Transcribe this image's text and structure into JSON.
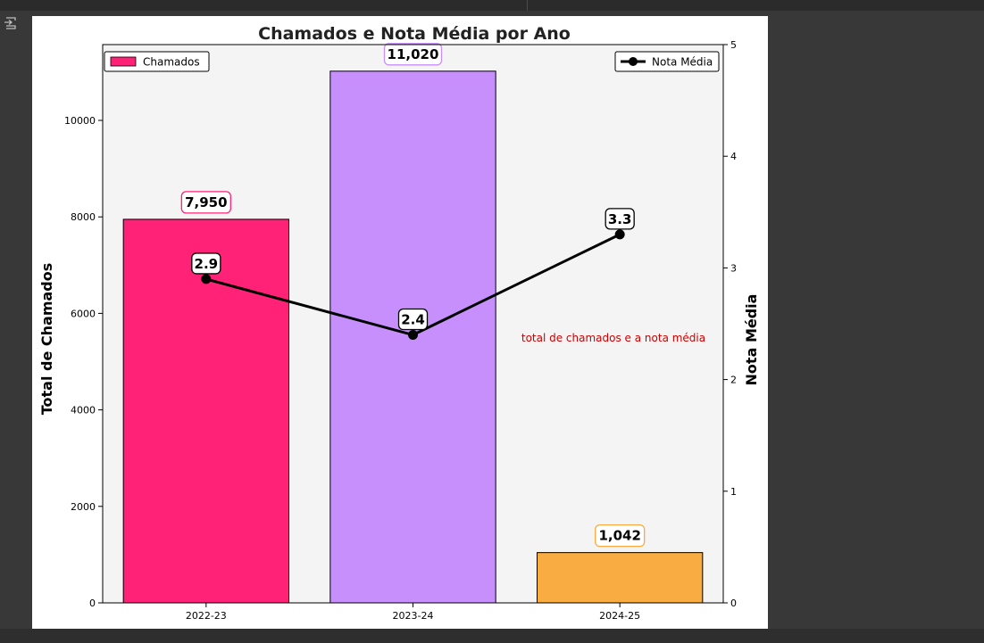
{
  "chart_data": {
    "type": "bar",
    "title": "Chamados e Nota Média por Ano",
    "categories": [
      "2022-23",
      "2023-24",
      "2024-25"
    ],
    "series": [
      {
        "name": "Chamados",
        "axis": "left",
        "values": [
          7950,
          11020,
          1042
        ],
        "labels": [
          "7,950",
          "11,020",
          "1,042"
        ],
        "colors": [
          "#ff2277",
          "#c68ffc",
          "#f8ac42"
        ]
      },
      {
        "name": "Nota Média",
        "type": "line",
        "axis": "right",
        "values": [
          2.9,
          2.4,
          3.3
        ],
        "labels": [
          "2.9",
          "2.4",
          "3.3"
        ],
        "color": "#000000"
      }
    ],
    "ylabel": "Total de Chamados",
    "y2label": "Nota Média",
    "ylim": [
      0,
      11571
    ],
    "y2lim": [
      0,
      5
    ],
    "yticks": [
      "0",
      "2000",
      "4000",
      "6000",
      "8000",
      "10000"
    ],
    "y2ticks": [
      "0",
      "1",
      "2",
      "3",
      "4",
      "5"
    ],
    "legend": {
      "left": "top-left",
      "right": "top-right"
    },
    "annotation": {
      "text": "total de chamados e a nota média",
      "color": "#cc0000"
    },
    "background": "#f4f4f4",
    "grid": false
  },
  "output_icon": "output-toggle-icon"
}
